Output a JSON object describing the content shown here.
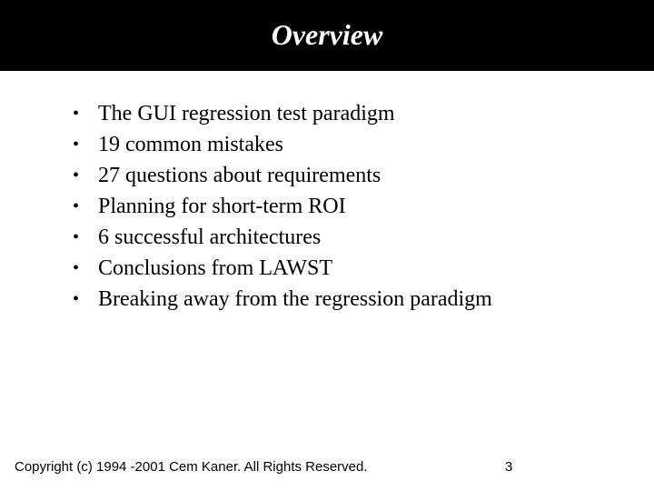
{
  "title": "Overview",
  "title_fontsize": 32,
  "title_color": "#ffffff",
  "title_bg": "#000000",
  "bullets": [
    "The GUI regression test paradigm",
    "19 common mistakes",
    "27 questions about requirements",
    "Planning for short-term ROI",
    "6 successful architectures",
    "Conclusions from LAWST",
    "Breaking away from the regression paradigm"
  ],
  "bullet_fontsize": 24,
  "bullet_color": "#000000",
  "bullet_glyph": "•",
  "footer": {
    "copyright": "Copyright (c) 1994 -2001 Cem Kaner. All Rights Reserved.",
    "page": "3",
    "fontsize": 15,
    "color": "#000000"
  },
  "background_color": "#ffffff",
  "slide_width": 720,
  "slide_height": 540
}
